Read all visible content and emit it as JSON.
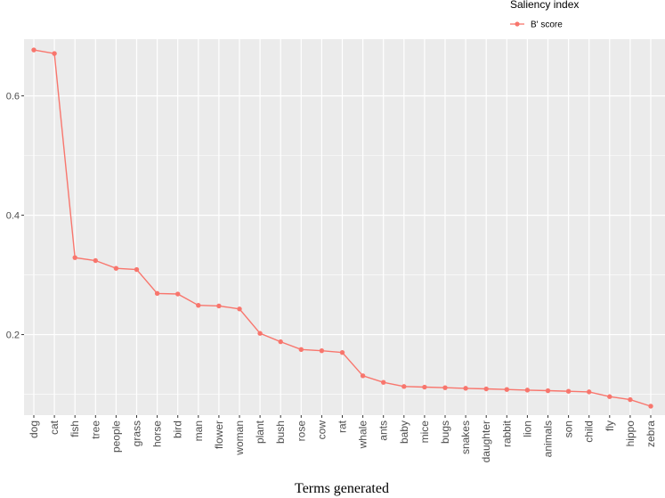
{
  "chart_data": {
    "type": "line",
    "title": "",
    "xlabel": "Terms generated",
    "ylabel": "",
    "ylim": [
      0.065,
      0.695
    ],
    "yticks": [
      0.2,
      0.4,
      0.6
    ],
    "ytick_labels": [
      "0.2",
      "0.4",
      "0.6"
    ],
    "grid": true,
    "legend": {
      "title": "Saliency index",
      "position": "top-right"
    },
    "categories": [
      "dog",
      "cat",
      "fish",
      "tree",
      "people",
      "grass",
      "horse",
      "bird",
      "man",
      "flower",
      "woman",
      "plant",
      "bush",
      "rose",
      "cow",
      "rat",
      "whale",
      "ants",
      "baby",
      "mice",
      "bugs",
      "snakes",
      "daughter",
      "rabbit",
      "lion",
      "animals",
      "son",
      "child",
      "fly",
      "hippo",
      "zebra"
    ],
    "series": [
      {
        "name": "B' score",
        "color": "#f8766d",
        "values": [
          0.677,
          0.671,
          0.329,
          0.324,
          0.311,
          0.309,
          0.269,
          0.268,
          0.249,
          0.248,
          0.243,
          0.202,
          0.188,
          0.175,
          0.173,
          0.17,
          0.131,
          0.12,
          0.113,
          0.112,
          0.111,
          0.11,
          0.109,
          0.108,
          0.107,
          0.106,
          0.105,
          0.104,
          0.096,
          0.091,
          0.08
        ]
      }
    ],
    "panel_background": "#ebebeb",
    "grid_color": "#ffffff"
  }
}
